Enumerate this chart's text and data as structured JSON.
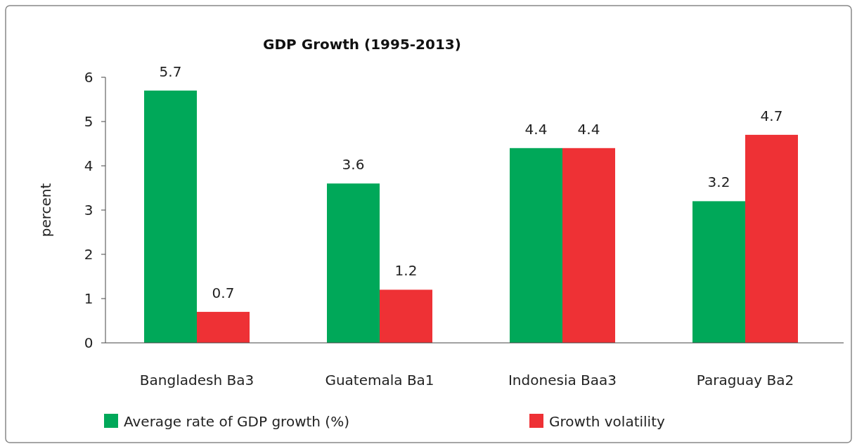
{
  "chart_data": {
    "type": "bar",
    "title": "GDP Growth (1995-2013)",
    "ylabel": "percent",
    "categories": [
      "Bangladesh Ba3",
      "Guatemala Ba1",
      "Indonesia Baa3",
      "Paraguay Ba2"
    ],
    "series": [
      {
        "name": "Average rate of GDP growth (%)",
        "color": "#00a859",
        "values": [
          5.7,
          3.6,
          4.4,
          3.2
        ]
      },
      {
        "name": "Growth volatility",
        "color": "#ee3135",
        "values": [
          0.7,
          1.2,
          4.4,
          4.7
        ]
      }
    ],
    "ylim": [
      0,
      6
    ],
    "yticks": [
      0,
      1,
      2,
      3,
      4,
      5,
      6
    ],
    "data_labels": true,
    "legend": "bottom",
    "grid": false
  }
}
